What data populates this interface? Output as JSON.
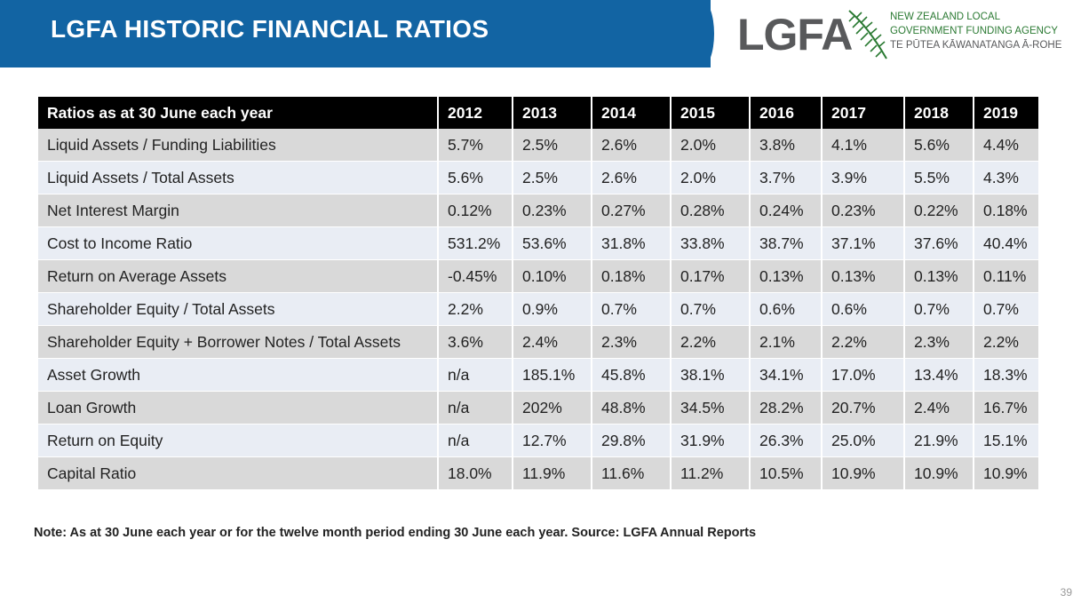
{
  "header": {
    "title": "LGFA HISTORIC FINANCIAL RATIOS"
  },
  "logo": {
    "letters": "LGFA",
    "line1": "NEW ZEALAND LOCAL",
    "line2": "GOVERNMENT FUNDING AGENCY",
    "line3": "TE PŪTEA KĀWANATANGA Ā-ROHE",
    "brand_green": "#2b7a33",
    "brand_grey": "#58595b"
  },
  "table": {
    "headers": [
      "Ratios as at 30 June each year",
      "2012",
      "2013",
      "2014",
      "2015",
      "2016",
      "2017",
      "2018",
      "2019"
    ],
    "rows": [
      [
        "Liquid Assets / Funding Liabilities",
        "5.7%",
        "2.5%",
        "2.6%",
        "2.0%",
        "3.8%",
        "4.1%",
        "5.6%",
        "4.4%"
      ],
      [
        "Liquid Assets / Total Assets",
        "5.6%",
        "2.5%",
        "2.6%",
        "2.0%",
        "3.7%",
        "3.9%",
        "5.5%",
        "4.3%"
      ],
      [
        "Net Interest Margin",
        "0.12%",
        "0.23%",
        "0.27%",
        "0.28%",
        "0.24%",
        "0.23%",
        "0.22%",
        "0.18%"
      ],
      [
        "Cost to Income Ratio",
        "531.2%",
        "53.6%",
        "31.8%",
        "33.8%",
        "38.7%",
        "37.1%",
        "37.6%",
        "40.4%"
      ],
      [
        "Return on Average Assets",
        "-0.45%",
        "0.10%",
        "0.18%",
        "0.17%",
        "0.13%",
        "0.13%",
        "0.13%",
        "0.11%"
      ],
      [
        "Shareholder Equity / Total Assets",
        "2.2%",
        "0.9%",
        "0.7%",
        "0.7%",
        "0.6%",
        "0.6%",
        "0.7%",
        "0.7%"
      ],
      [
        "Shareholder Equity + Borrower Notes / Total Assets",
        "3.6%",
        "2.4%",
        "2.3%",
        "2.2%",
        "2.1%",
        "2.2%",
        "2.3%",
        "2.2%"
      ],
      [
        "Asset Growth",
        "n/a",
        "185.1%",
        "45.8%",
        "38.1%",
        "34.1%",
        "17.0%",
        "13.4%",
        "18.3%"
      ],
      [
        "Loan Growth",
        "n/a",
        "202%",
        "48.8%",
        "34.5%",
        "28.2%",
        "20.7%",
        "2.4%",
        "16.7%"
      ],
      [
        "Return on Equity",
        "n/a",
        "12.7%",
        "29.8%",
        "31.9%",
        "26.3%",
        "25.0%",
        "21.9%",
        "15.1%"
      ],
      [
        "Capital Ratio",
        "18.0%",
        "11.9%",
        "11.6%",
        "11.2%",
        "10.5%",
        "10.9%",
        "10.9%",
        "10.9%"
      ]
    ]
  },
  "note": "Note: As at 30 June each year or for the twelve month period ending 30 June each year. Source: LGFA Annual Reports",
  "page_number": "39",
  "colors": {
    "header_band": "#1264a3",
    "table_header": "#000000",
    "row_odd": "#d9d9d9",
    "row_even": "#e9edf4"
  }
}
